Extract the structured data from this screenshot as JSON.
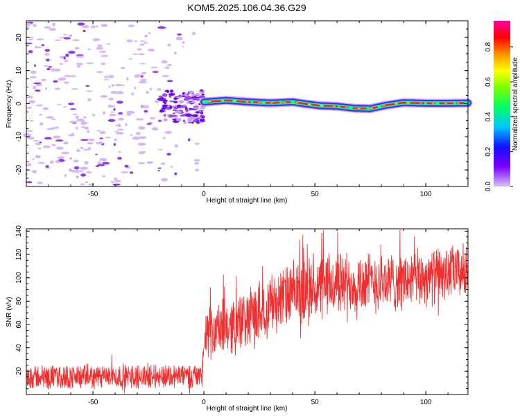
{
  "title": "KOM5.2025.106.04.36.G29",
  "chart_data": [
    {
      "type": "heatmap",
      "xlabel": "Height of straight line (km)",
      "ylabel": "Frequency (Hz)",
      "xlim": [
        -80,
        119
      ],
      "ylim": [
        -25,
        25
      ],
      "xticks": [
        -50,
        0,
        50,
        100
      ],
      "yticks": [
        -20,
        -10,
        0,
        10,
        20
      ],
      "colorbar": {
        "label": "Normalized spectral amplitude",
        "range": [
          0.0,
          0.95
        ],
        "ticks": [
          0.0,
          0.2,
          0.4,
          0.6,
          0.8
        ],
        "colormap": "rainbow (violet -> blue -> cyan -> green -> yellow -> orange -> red -> magenta)"
      },
      "ridge_frequency_hz": [
        {
          "x": 0,
          "f": 0.5
        },
        {
          "x": 10,
          "f": 1.0
        },
        {
          "x": 20,
          "f": 0.5
        },
        {
          "x": 30,
          "f": 0.2
        },
        {
          "x": 40,
          "f": 0.5
        },
        {
          "x": 45,
          "f": 0.0
        },
        {
          "x": 52,
          "f": -0.6
        },
        {
          "x": 60,
          "f": -0.8
        },
        {
          "x": 68,
          "f": -1.4
        },
        {
          "x": 75,
          "f": -1.5
        },
        {
          "x": 82,
          "f": -0.5
        },
        {
          "x": 90,
          "f": 0.3
        },
        {
          "x": 100,
          "f": 0.1
        },
        {
          "x": 110,
          "f": 0.1
        },
        {
          "x": 119,
          "f": 0.2
        }
      ]
    },
    {
      "type": "line",
      "xlabel": "Height of straight line (km)",
      "ylabel": "SNR (v/v)",
      "xlim": [
        -80,
        119
      ],
      "ylim": [
        0,
        142
      ],
      "xticks": [
        -50,
        0,
        50,
        100
      ],
      "yticks": [
        20,
        40,
        60,
        80,
        100,
        120,
        140
      ],
      "color": "#f03030",
      "series_mean": [
        {
          "x": -80,
          "y": 15
        },
        {
          "x": -60,
          "y": 15
        },
        {
          "x": -40,
          "y": 15
        },
        {
          "x": -20,
          "y": 16
        },
        {
          "x": -1,
          "y": 16
        },
        {
          "x": 0,
          "y": 42
        },
        {
          "x": 2,
          "y": 52
        },
        {
          "x": 10,
          "y": 58
        },
        {
          "x": 20,
          "y": 64
        },
        {
          "x": 30,
          "y": 78
        },
        {
          "x": 40,
          "y": 86
        },
        {
          "x": 50,
          "y": 90
        },
        {
          "x": 60,
          "y": 95
        },
        {
          "x": 70,
          "y": 96
        },
        {
          "x": 80,
          "y": 96
        },
        {
          "x": 90,
          "y": 97
        },
        {
          "x": 100,
          "y": 100
        },
        {
          "x": 110,
          "y": 104
        },
        {
          "x": 119,
          "y": 106
        }
      ],
      "series_spread": [
        {
          "x": -80,
          "s": 12
        },
        {
          "x": -1,
          "s": 12
        },
        {
          "x": 0,
          "s": 24
        },
        {
          "x": 20,
          "s": 30
        },
        {
          "x": 50,
          "s": 32
        },
        {
          "x": 119,
          "s": 26
        }
      ]
    }
  ]
}
